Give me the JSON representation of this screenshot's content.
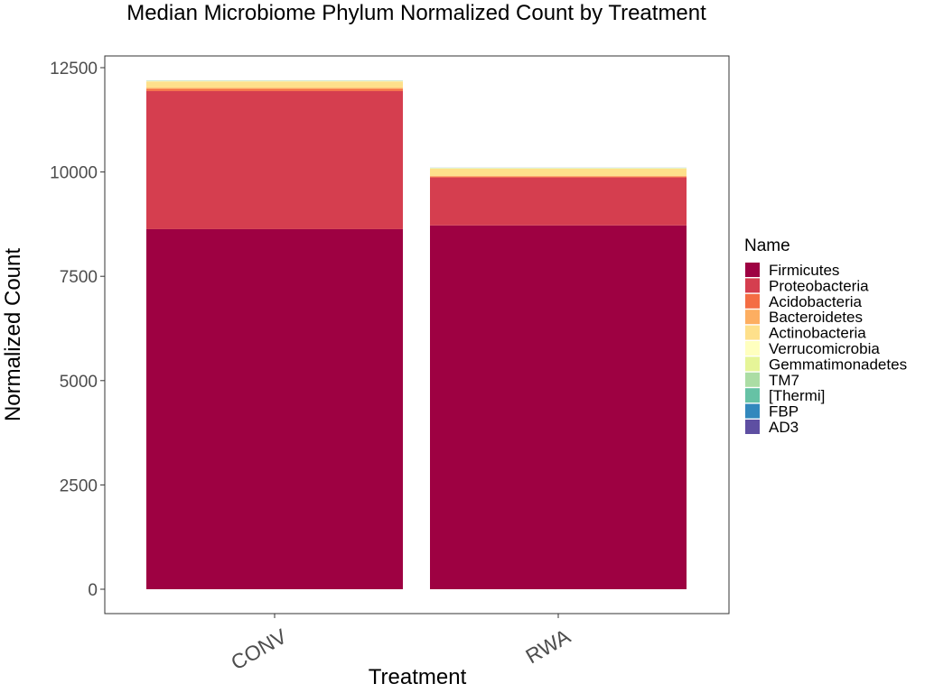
{
  "chart_data": {
    "type": "bar",
    "stacked": true,
    "title": "Median Microbiome Phylum Normalized Count by Treatment",
    "xlabel": "Treatment",
    "ylabel": "Normalized Count",
    "categories": [
      "CONV",
      "RWA"
    ],
    "ylim": [
      -600,
      12650
    ],
    "yticks": [
      0,
      2500,
      5000,
      7500,
      10000,
      12500
    ],
    "legend_title": "Name",
    "legend_position": "right",
    "grid": false,
    "series": [
      {
        "name": "Firmicutes",
        "color": "#9e0142",
        "values": [
          8630,
          8720
        ]
      },
      {
        "name": "Proteobacteria",
        "color": "#d53e4f",
        "values": [
          3310,
          1150
        ]
      },
      {
        "name": "Acidobacteria",
        "color": "#f46d43",
        "values": [
          50,
          20
        ]
      },
      {
        "name": "Bacteroidetes",
        "color": "#fdae61",
        "values": [
          30,
          20
        ]
      },
      {
        "name": "Actinobacteria",
        "color": "#fee08b",
        "values": [
          150,
          170
        ]
      },
      {
        "name": "Verrucomicrobia",
        "color": "#ffffbf",
        "values": [
          10,
          10
        ]
      },
      {
        "name": "Gemmatimonadetes",
        "color": "#e6f598",
        "values": [
          5,
          5
        ]
      },
      {
        "name": "TM7",
        "color": "#abdda4",
        "values": [
          3,
          3
        ]
      },
      {
        "name": "[Thermi]",
        "color": "#66c2a5",
        "values": [
          2,
          2
        ]
      },
      {
        "name": "FBP",
        "color": "#3288bd",
        "values": [
          1,
          1
        ]
      },
      {
        "name": "AD3",
        "color": "#5e4fa2",
        "values": [
          1,
          1
        ]
      }
    ]
  }
}
